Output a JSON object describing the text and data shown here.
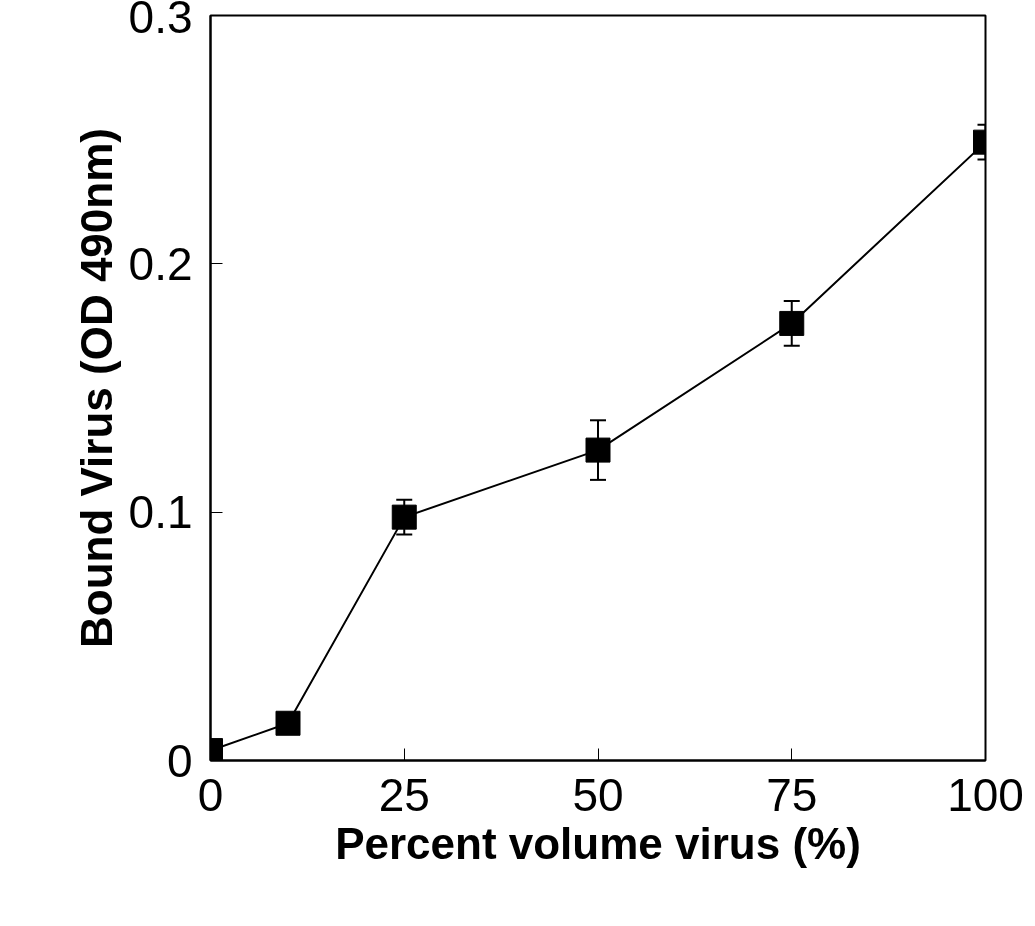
{
  "chart_data": {
    "type": "line",
    "xlabel": "Percent volume virus (%)",
    "ylabel": "Bound Virus (OD 490nm)",
    "x": [
      0,
      10,
      25,
      50,
      75,
      100
    ],
    "series": [
      {
        "color": "#000000",
        "values": [
          0.004,
          0.015,
          0.098,
          0.125,
          0.176,
          0.249
        ],
        "errors": [
          null,
          null,
          0.007,
          0.012,
          0.009,
          0.007
        ]
      }
    ],
    "xlim": [
      0,
      100
    ],
    "ylim": [
      0,
      0.3
    ],
    "xticks": [
      0,
      25,
      50,
      75,
      100
    ],
    "yticks": [
      0,
      0.1,
      0.2,
      0.3
    ],
    "grid": false,
    "marker": "square",
    "line_style": "solid"
  }
}
